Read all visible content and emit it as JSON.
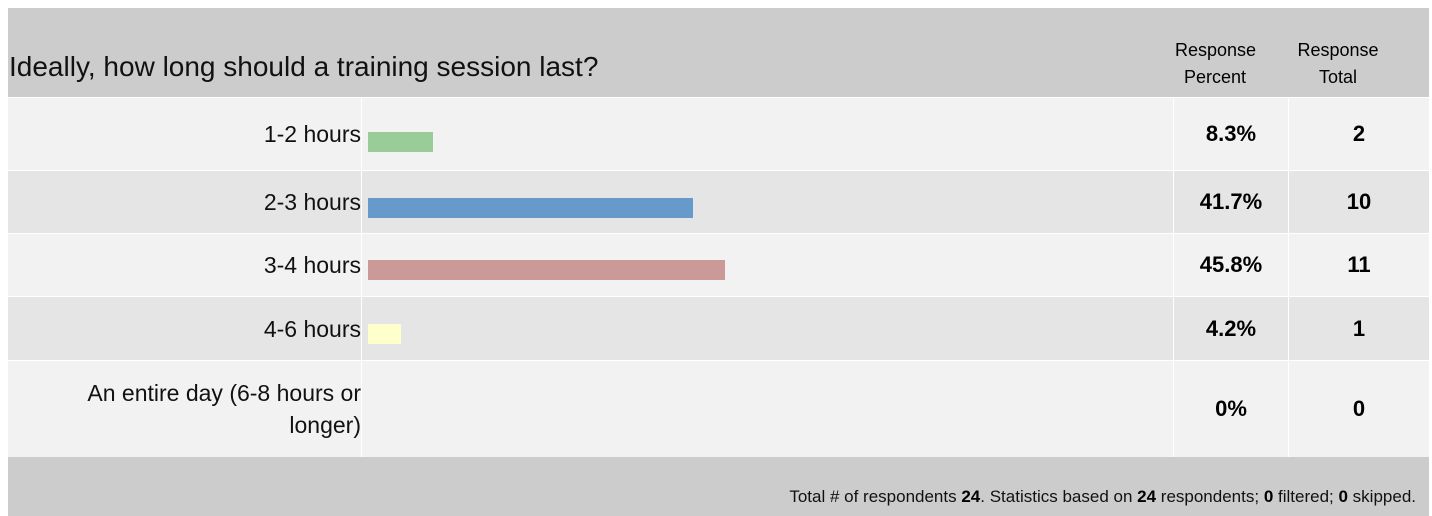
{
  "question": "Ideally, how long should a training session last?",
  "columns": {
    "percent_line1": "Response",
    "percent_line2": "Percent",
    "total_line1": "Response",
    "total_line2": "Total"
  },
  "chart_data": {
    "type": "bar",
    "orientation": "horizontal",
    "title": "Ideally, how long should a training session last?",
    "categories": [
      "1-2 hours",
      "2-3 hours",
      "3-4 hours",
      "4-6 hours",
      "An entire day (6-8 hours or longer)"
    ],
    "values": [
      8.3,
      41.7,
      45.8,
      4.2,
      0
    ],
    "value_labels": [
      "8.3%",
      "41.7%",
      "45.8%",
      "4.2%",
      "0%"
    ],
    "totals": [
      "2",
      "10",
      "11",
      "1",
      "0"
    ],
    "colors": [
      "#99cc99",
      "#6699cc",
      "#cc9999",
      "#ffffcc",
      "#cccccc"
    ],
    "xlim": [
      0,
      100
    ]
  },
  "footer": {
    "t1": "Total # of respondents ",
    "respondents": "24",
    "t2": ". Statistics based on ",
    "based_on": "24",
    "t3": " respondents; ",
    "filtered": "0",
    "t4": " filtered; ",
    "skipped": "0",
    "t5": " skipped."
  }
}
